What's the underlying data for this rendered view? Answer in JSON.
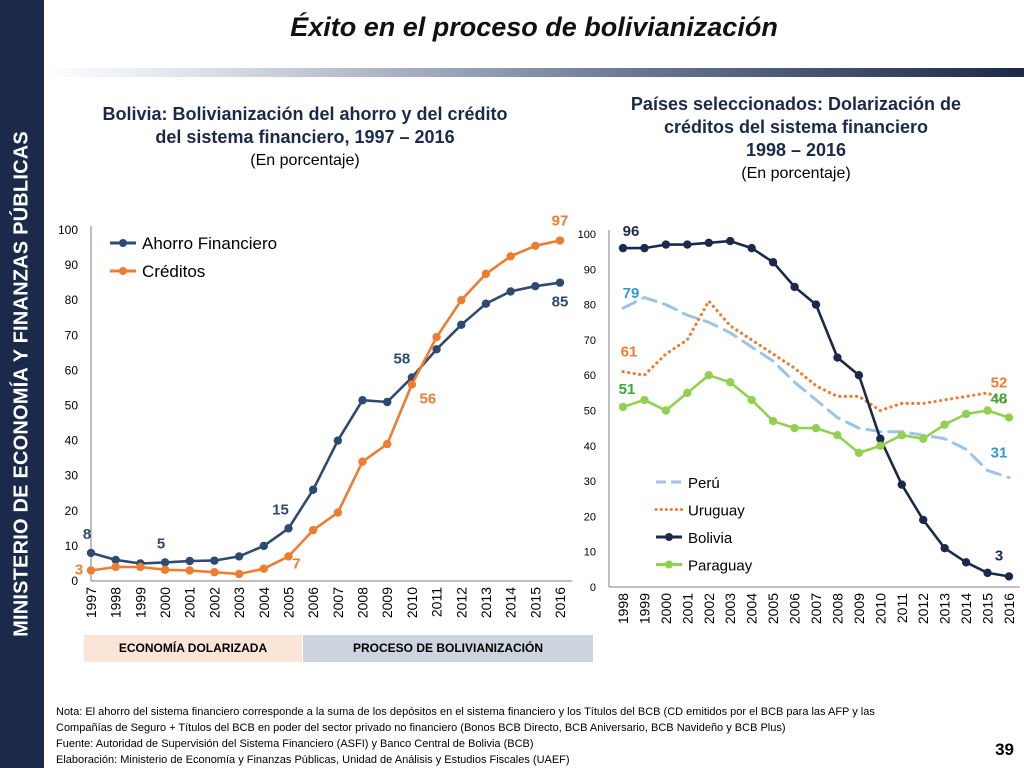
{
  "sidebar": {
    "text": "MINISTERIO DE ECONOMÍA Y FINANZAS PÚBLICAS"
  },
  "page": {
    "title": "Éxito en el proceso de bolivianización",
    "number": "39"
  },
  "left_chart_text": {
    "title_line1": "Bolivia: Bolivianización del ahorro y del crédito",
    "title_line2": "del sistema financiero, 1997 – 2016",
    "subtitle": "(En porcentaje)"
  },
  "right_chart_text": {
    "title_line1": "Países seleccionados: Dolarización de",
    "title_line2": "créditos del sistema financiero",
    "title_line3": "1998 – 2016",
    "subtitle": "(En porcentaje)"
  },
  "periods": {
    "dollarized": "ECONOMÍA DOLARIZADA",
    "bolivianization": "PROCESO DE BOLIVIANIZACIÓN"
  },
  "notes": {
    "line1": "Nota: El ahorro del sistema financiero corresponde a la suma de los depósitos en el sistema financiero y los Títulos del BCB (CD emitidos por el BCB para las AFP y las",
    "line2": "Compañías de Seguro + Títulos del BCB en poder del sector privado no financiero (Bonos BCB Directo, BCB Aniversario, BCB Navideño y BCB Plus)",
    "line3": "Fuente: Autoridad de Supervisión del Sistema Financiero (ASFI) y Banco Central de Bolivia (BCB)",
    "line4": "Elaboración: Ministerio de Economía y Finanzas Públicas, Unidad de Análisis y Estudios Fiscales (UAEF)"
  },
  "chart_data": [
    {
      "type": "line",
      "title": "Bolivia: Bolivianización del ahorro y del crédito del sistema financiero, 1997 – 2016",
      "subtitle": "(En porcentaje)",
      "x": [
        "1997",
        "1998",
        "1999",
        "2000",
        "2001",
        "2002",
        "2003",
        "2004",
        "2005",
        "2006",
        "2007",
        "2008",
        "2009",
        "2010",
        "2011",
        "2012",
        "2013",
        "2014",
        "2015",
        "2016"
      ],
      "ylim": [
        0,
        100
      ],
      "yticks": [
        0,
        10,
        20,
        30,
        40,
        50,
        60,
        70,
        80,
        90,
        100
      ],
      "grid": false,
      "legend": "top-left",
      "series": [
        {
          "name": "Ahorro Financiero",
          "color": "#2e4a70",
          "values": [
            8.0,
            6.0,
            5.0,
            5.3,
            5.7,
            5.8,
            7.0,
            10.0,
            15.0,
            26.0,
            40.0,
            51.5,
            51.0,
            58.0,
            66.0,
            73.0,
            79.0,
            82.5,
            84.0,
            85.0
          ],
          "labels": [
            [
              0,
              "8"
            ],
            [
              3,
              "5"
            ],
            [
              8,
              "15"
            ],
            [
              13,
              "58"
            ],
            [
              19,
              "85"
            ]
          ]
        },
        {
          "name": "Créditos",
          "color": "#ed7d31",
          "values": [
            3.0,
            4.0,
            4.0,
            3.2,
            3.0,
            2.5,
            2.0,
            3.5,
            7.0,
            14.5,
            19.5,
            34.0,
            39.0,
            56.0,
            69.5,
            80.0,
            87.5,
            92.5,
            95.5,
            97.0
          ],
          "labels": [
            [
              0,
              "3"
            ],
            [
              8,
              "7"
            ],
            [
              13,
              "56"
            ],
            [
              19,
              "97"
            ]
          ]
        }
      ]
    },
    {
      "type": "line",
      "title": "Países seleccionados: Dolarización de créditos del sistema financiero 1998 – 2016",
      "subtitle": "(En porcentaje)",
      "x": [
        "1998",
        "1999",
        "2000",
        "2001",
        "2002",
        "2003",
        "2004",
        "2005",
        "2006",
        "2007",
        "2008",
        "2009",
        "2010",
        "2011",
        "2012",
        "2013",
        "2014",
        "2015",
        "2016"
      ],
      "ylim": [
        0,
        100
      ],
      "yticks": [
        0,
        10,
        20,
        30,
        40,
        50,
        60,
        70,
        80,
        90,
        100
      ],
      "grid": false,
      "legend": "bottom-left",
      "series": [
        {
          "name": "Perú",
          "color": "#9dc3e6",
          "dash": "long-dash",
          "values": [
            79,
            82,
            80,
            77,
            75,
            72,
            68,
            64,
            58,
            53,
            48,
            45,
            44,
            44,
            43,
            42,
            39,
            33,
            31
          ],
          "labels": [
            [
              0,
              "79"
            ],
            [
              18,
              "31"
            ]
          ],
          "label_color": "#2e9bd6"
        },
        {
          "name": "Uruguay",
          "color": "#ed7d31",
          "dash": "dot",
          "values": [
            61,
            60,
            66,
            70,
            81,
            74,
            70,
            66,
            62,
            57,
            54,
            54,
            50,
            52,
            52,
            53,
            54,
            55,
            52
          ],
          "labels": [
            [
              0,
              "61"
            ],
            [
              18,
              "52"
            ]
          ],
          "label_color": "#ed7d31"
        },
        {
          "name": "Bolivia",
          "color": "#1b2a4a",
          "dash": "solid",
          "values": [
            96,
            96,
            97,
            97,
            97.5,
            98,
            96,
            92,
            85,
            80,
            65,
            60,
            42,
            29,
            19,
            11,
            7,
            4,
            3
          ],
          "labels": [
            [
              0,
              "96"
            ],
            [
              18,
              "3"
            ]
          ],
          "label_color": "#1b2a4a"
        },
        {
          "name": "Paraguay",
          "color": "#92d050",
          "dash": "solid",
          "values": [
            51,
            53,
            50,
            55,
            60,
            58,
            53,
            47,
            45,
            45,
            43,
            38,
            40,
            43,
            42,
            46,
            49,
            50,
            48
          ],
          "labels": [
            [
              0,
              "51"
            ],
            [
              18,
              "48"
            ]
          ],
          "label_color": "#38a838"
        }
      ]
    }
  ]
}
